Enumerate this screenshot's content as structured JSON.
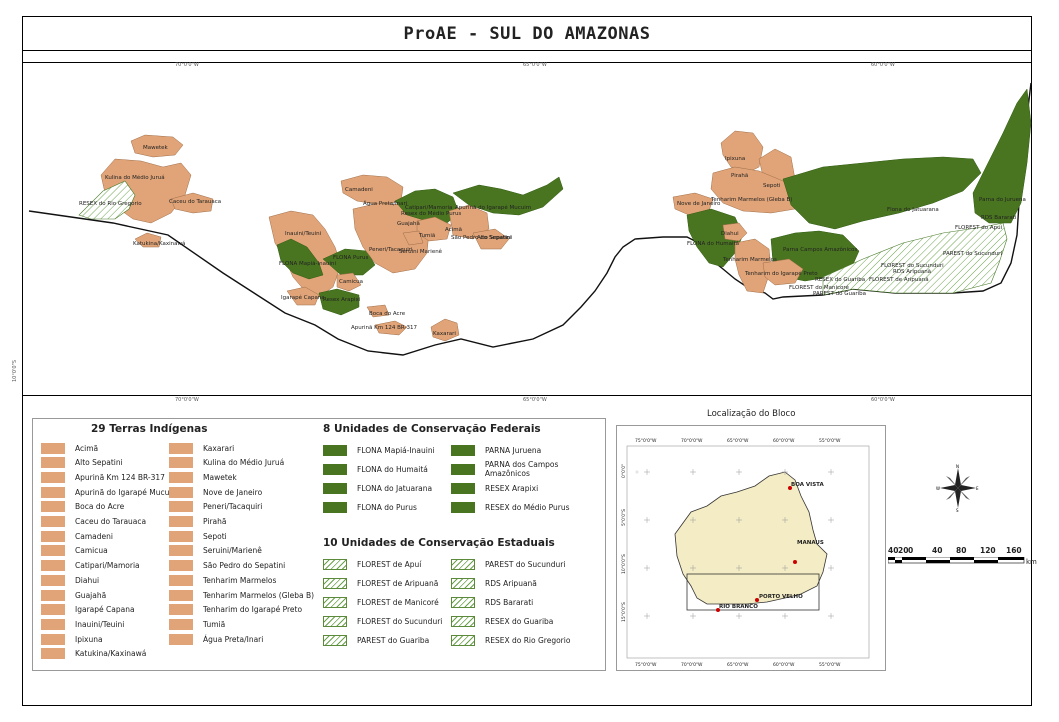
{
  "title": "ProAE - SUL DO AMAZONAS",
  "main_map": {
    "top_coords": [
      "70°0'0\"W",
      "65°0'0\"W",
      "60°0'0\"W"
    ],
    "bottom_coords": [
      "70°0'0\"W",
      "65°0'0\"W",
      "60°0'0\"W"
    ],
    "side_coord": "10°0'0\"S",
    "labels": {
      "mawetek": "Mawetek",
      "kulina": "Kulina do Médio Juruá",
      "resex_rio_gregorio": "RESEX do Rio Gregorio",
      "caceu": "Caceu do Tarauaca",
      "katukina": "Katukina/Kaxinawá",
      "inauini": "Inauini/Teuini",
      "flona_mapia": "FLONA Mapiá-Inauini",
      "flona_purus": "FLONA Purus",
      "camicua": "Camicua",
      "igarape_capana": "Igarapé Capana",
      "resex_arapixi": "Resex Arapixi",
      "boca_acre": "Boca do Acre",
      "apurina_km": "Apurinã Km 124 BR-317",
      "camadeni": "Camadeni",
      "agua_preta": "Água Preta/Inari",
      "catipari": "Catipari/Mamoria",
      "apurina_mucuim": "Apurinã do Igarapé Mucuim",
      "resex_medio_purus": "Resex do Médio Purus",
      "guajaha": "Guajahã",
      "tumia": "Tumiã",
      "acima": "Acimã",
      "sao_pedro": "São Pedro do Sepatini",
      "alto_sepatini": "Alto Sepatini",
      "peneri": "Peneri/Tacaquiri",
      "seruini": "Seruini Marienê",
      "kaxarari": "Kaxarari",
      "ipixuna": "Ipixuna",
      "pirahã": "Pirahã",
      "sepoti": "Sepoti",
      "nove_janeiro": "Nove de Janeiro",
      "tenharim_gleba": "Tenharim Marmelos (Gleba B)",
      "diahui": "Diahui",
      "flona_humaita": "FLONA do Humaitá",
      "tenharim_marmelos": "Tenharim Marmelos",
      "parna_campos": "Parna Campos Amazônicos",
      "tenharim_igarape": "Tenharim do Igarapé Preto",
      "florest_manicore": "FLOREST do Manicoré",
      "parest_guariba": "PAREST do Guariba",
      "resex_guariba": "RESEX do Guariba",
      "florest_aripuana": "FLOREST de Aripuanã",
      "rds_aripuana": "RDS Aripuanã",
      "florest_sucunduri": "FLOREST do Sucunduri",
      "parest_sucunduri": "PAREST do Sucunduri",
      "flona_jatuarana": "Flona do Jatuarana",
      "parna_juruena": "Parna do Juruena",
      "rds_bararati": "RDS Bararati",
      "florest_apui": "FLOREST do Apuí"
    }
  },
  "legend": {
    "indigenous_title": "29 Terras Indígenas",
    "indigenous_col1": [
      "Acimã",
      "Alto Sepatini",
      "Apurinã Km 124 BR-317",
      "Apurinã do Igarapé Mucuim",
      "Boca do Acre",
      "Caceu do Tarauaca",
      "Camadeni",
      "Camicua",
      "Catipari/Mamoria",
      "Diahui",
      "Guajahã",
      "Igarapé Capana",
      "Inauini/Teuini",
      "Ipixuna",
      "Katukina/Kaxinawá"
    ],
    "indigenous_col2": [
      "Kaxarari",
      "Kulina do Médio Juruá",
      "Mawetek",
      "Nove de Janeiro",
      "Peneri/Tacaquiri",
      "Pirahã",
      "Sepoti",
      "Seruini/Marienê",
      "São Pedro do Sepatini",
      "Tenharim Marmelos",
      "Tenharim Marmelos (Gleba B)",
      "Tenharim do Igarapé Preto",
      "Tumiã",
      "Água Preta/Inari"
    ],
    "federal_title": "8 Unidades de Conservação Federais",
    "federal_col1": [
      "FLONA Mapiá-Inauini",
      "FLONA do Humaitá",
      "FLONA do Jatuarana",
      "FLONA do Purus"
    ],
    "federal_col2": [
      "PARNA Juruena",
      "PARNA dos Campos Amazônicos",
      "RESEX Arapixi",
      "RESEX do Médio Purus"
    ],
    "state_title": "10 Unidades de Conservação Estaduais",
    "state_col1": [
      "FLOREST de Apuí",
      "FLOREST de Aripuanã",
      "FLOREST de Manicoré",
      "FLOREST do Sucunduri",
      "PAREST do Guariba"
    ],
    "state_col2": [
      "PAREST do Sucunduri",
      "RDS Aripuanã",
      "RDS Bararati",
      "RESEX do Guariba",
      "RESEX do Rio Gregorio"
    ]
  },
  "inset": {
    "title": "Localização do Bloco",
    "top_coords": [
      "75°0'0\"W",
      "70°0'0\"W",
      "65°0'0\"W",
      "60°0'0\"W",
      "55°0'0\"W"
    ],
    "bottom_coords": [
      "75°0'0\"W",
      "70°0'0\"W",
      "65°0'0\"W",
      "60°0'0\"W",
      "55°0'0\"W"
    ],
    "side_coords": [
      "0°0'0\"",
      "5°0'0\"S",
      "10°0'0\"S",
      "15°0'0\"S"
    ],
    "cities": [
      "BOA VISTA",
      "MANAUS",
      "PORTO VELHO",
      "RIO BRANCO"
    ]
  },
  "compass": {
    "n": "N",
    "s": "S",
    "e": "E",
    "w": "W"
  },
  "scale": {
    "ticks": [
      "40",
      "20",
      "0",
      "40",
      "80",
      "120",
      "160"
    ],
    "unit": "km"
  },
  "colors": {
    "indigenous": "#e0a478",
    "federal": "#4a7520",
    "state_hatch": "#6aa24a"
  }
}
